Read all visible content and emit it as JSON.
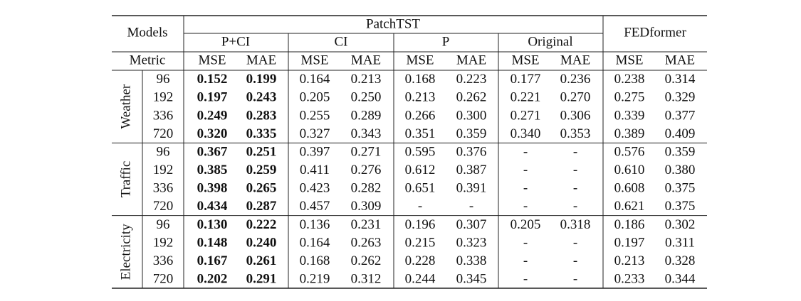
{
  "header": {
    "models": "Models",
    "patchtst": "PatchTST",
    "fedformer": "FEDformer",
    "variants": [
      "P+CI",
      "CI",
      "P",
      "Original"
    ],
    "metric": "Metric",
    "metrics": [
      "MSE",
      "MAE",
      "MSE",
      "MAE",
      "MSE",
      "MAE",
      "MSE",
      "MAE",
      "MSE",
      "MAE"
    ]
  },
  "groups": [
    {
      "name": "Weather",
      "rows": [
        {
          "horizon": 96,
          "values": [
            "0.152",
            "0.199",
            "0.164",
            "0.213",
            "0.168",
            "0.223",
            "0.177",
            "0.236",
            "0.238",
            "0.314"
          ]
        },
        {
          "horizon": 192,
          "values": [
            "0.197",
            "0.243",
            "0.205",
            "0.250",
            "0.213",
            "0.262",
            "0.221",
            "0.270",
            "0.275",
            "0.329"
          ]
        },
        {
          "horizon": 336,
          "values": [
            "0.249",
            "0.283",
            "0.255",
            "0.289",
            "0.266",
            "0.300",
            "0.271",
            "0.306",
            "0.339",
            "0.377"
          ]
        },
        {
          "horizon": 720,
          "values": [
            "0.320",
            "0.335",
            "0.327",
            "0.343",
            "0.351",
            "0.359",
            "0.340",
            "0.353",
            "0.389",
            "0.409"
          ]
        }
      ]
    },
    {
      "name": "Traffic",
      "rows": [
        {
          "horizon": 96,
          "values": [
            "0.367",
            "0.251",
            "0.397",
            "0.271",
            "0.595",
            "0.376",
            "-",
            "-",
            "0.576",
            "0.359"
          ]
        },
        {
          "horizon": 192,
          "values": [
            "0.385",
            "0.259",
            "0.411",
            "0.276",
            "0.612",
            "0.387",
            "-",
            "-",
            "0.610",
            "0.380"
          ]
        },
        {
          "horizon": 336,
          "values": [
            "0.398",
            "0.265",
            "0.423",
            "0.282",
            "0.651",
            "0.391",
            "-",
            "-",
            "0.608",
            "0.375"
          ]
        },
        {
          "horizon": 720,
          "values": [
            "0.434",
            "0.287",
            "0.457",
            "0.309",
            "-",
            "-",
            "-",
            "-",
            "0.621",
            "0.375"
          ]
        }
      ]
    },
    {
      "name": "Electricity",
      "rows": [
        {
          "horizon": 96,
          "values": [
            "0.130",
            "0.222",
            "0.136",
            "0.231",
            "0.196",
            "0.307",
            "0.205",
            "0.318",
            "0.186",
            "0.302"
          ]
        },
        {
          "horizon": 192,
          "values": [
            "0.148",
            "0.240",
            "0.164",
            "0.263",
            "0.215",
            "0.323",
            "-",
            "-",
            "0.197",
            "0.311"
          ]
        },
        {
          "horizon": 336,
          "values": [
            "0.167",
            "0.261",
            "0.168",
            "0.262",
            "0.228",
            "0.338",
            "-",
            "-",
            "0.213",
            "0.328"
          ]
        },
        {
          "horizon": 720,
          "values": [
            "0.202",
            "0.291",
            "0.219",
            "0.312",
            "0.244",
            "0.345",
            "-",
            "-",
            "0.233",
            "0.344"
          ]
        }
      ]
    }
  ]
}
